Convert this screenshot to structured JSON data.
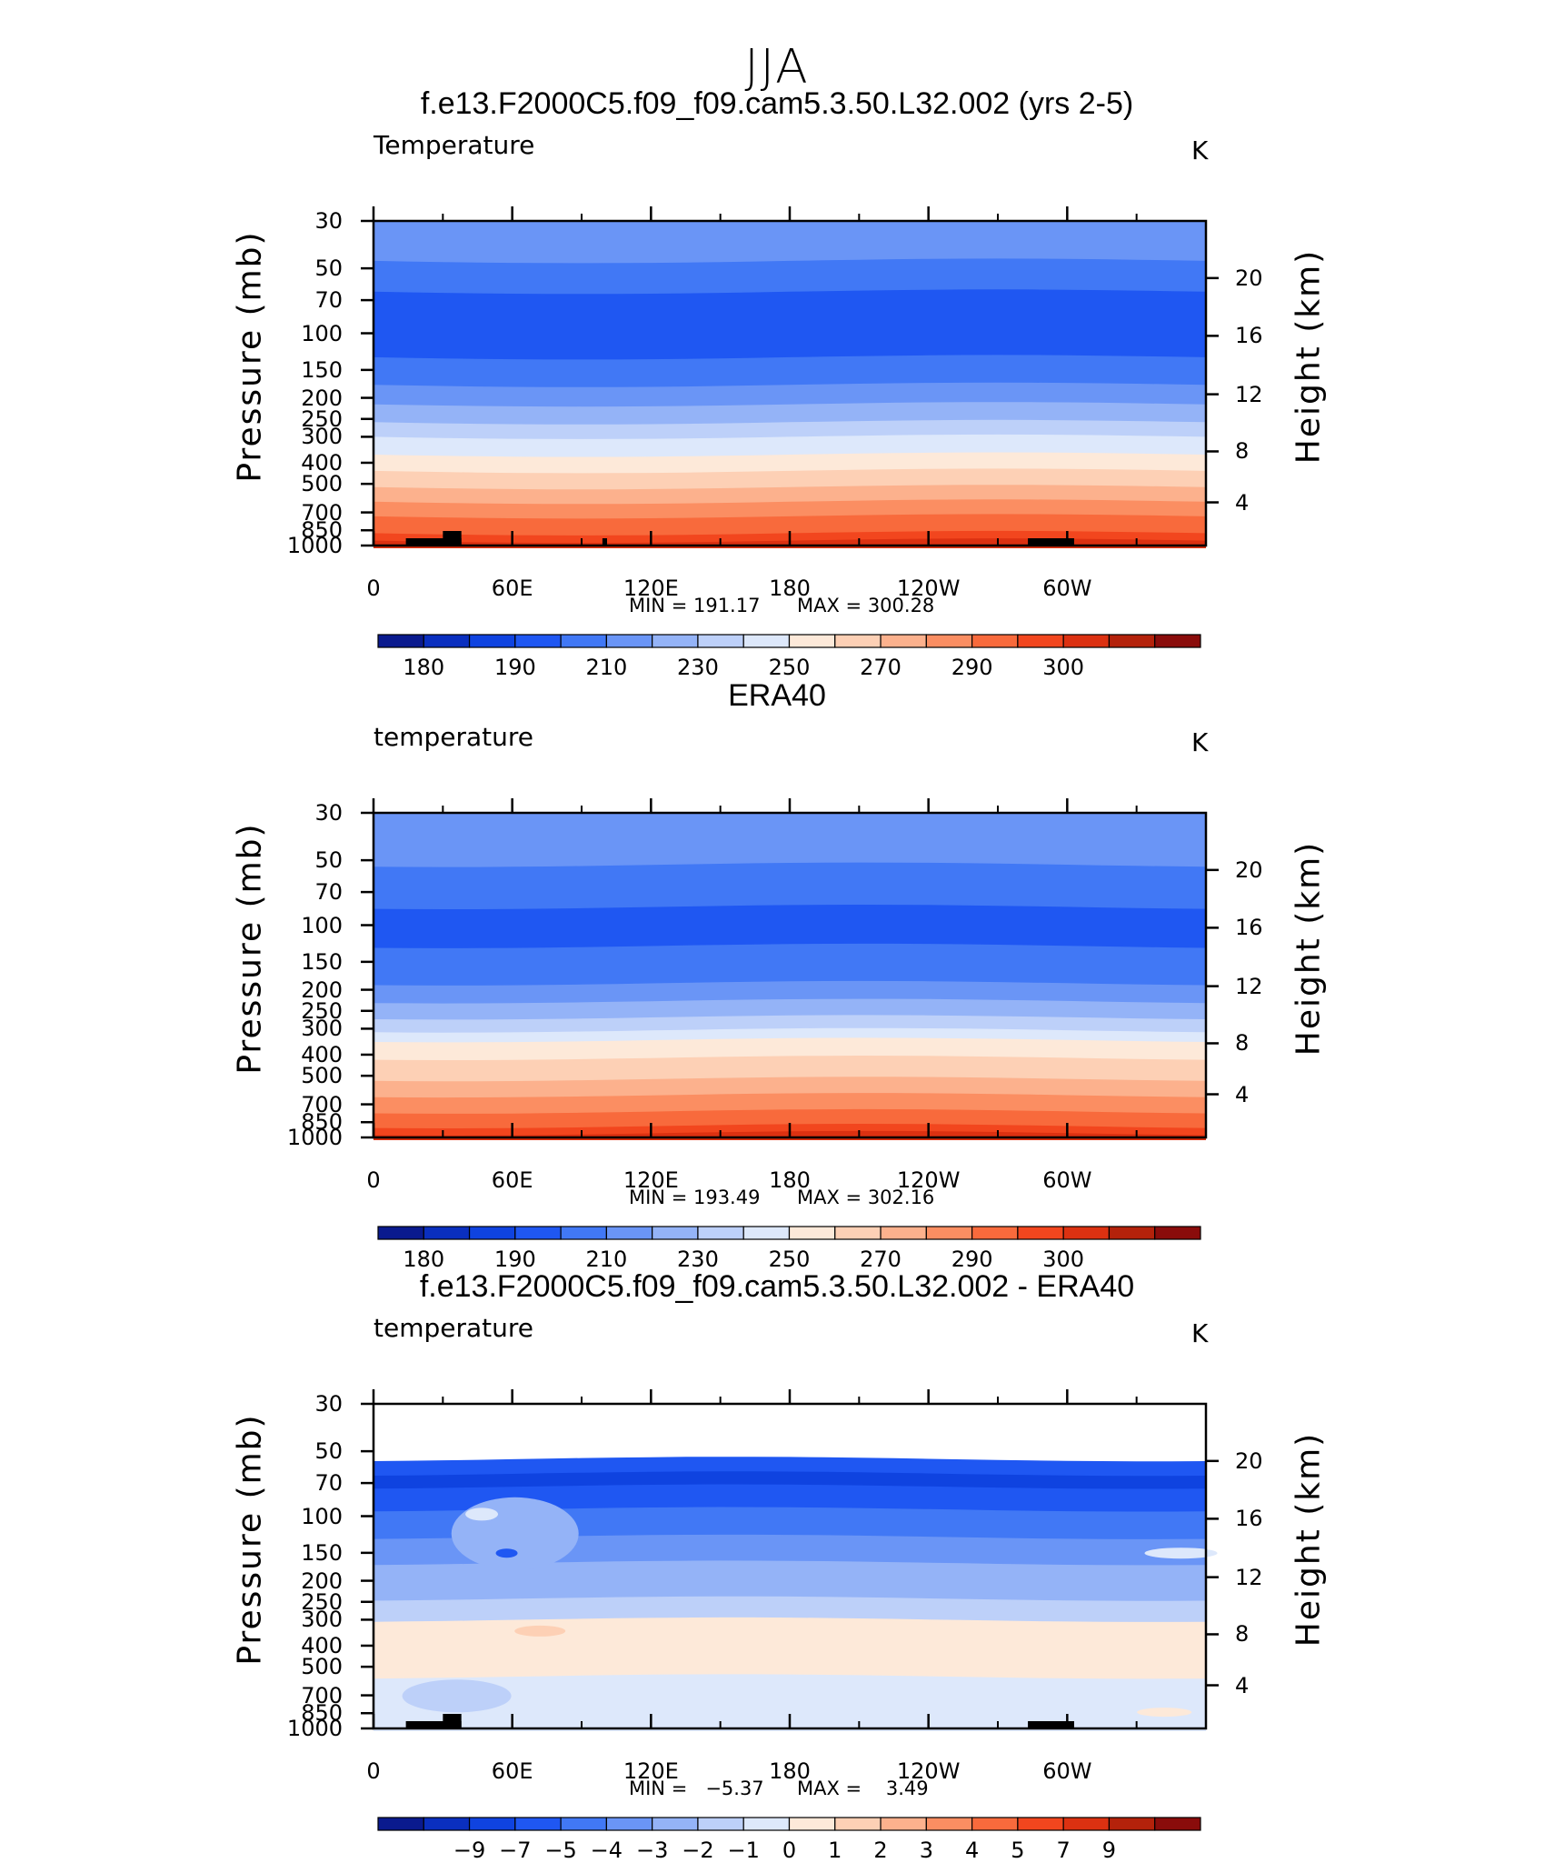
{
  "page_title": "JJA",
  "chart_data": [
    {
      "type": "contour",
      "title": "f.e13.F2000C5.f09_f09.cam5.3.50.L32.002 (yrs 2-5)",
      "variable_label": "Temperature",
      "units": "K",
      "ylabel_left": "Pressure (mb)",
      "ylabel_right": "Height (km)",
      "y_left_ticks": [
        "30",
        "50",
        "70",
        "100",
        "150",
        "200",
        "250",
        "300",
        "400",
        "500",
        "700",
        "850",
        "1000"
      ],
      "y_right_ticks": [
        "20",
        "16",
        "12",
        "8",
        "4"
      ],
      "x_ticks": [
        "0",
        "60E",
        "120E",
        "180",
        "120W",
        "60W"
      ],
      "min_label": "MIN = 191.17",
      "max_label": "MAX = 300.28",
      "min": 191.17,
      "max": 300.28,
      "colorbar_labels": [
        "180",
        "190",
        "210",
        "230",
        "250",
        "270",
        "290",
        "300"
      ],
      "colorbar_colors": [
        "#0a1a8e",
        "#0a2fbf",
        "#0f43e0",
        "#1f57f2",
        "#4178f5",
        "#6a95f6",
        "#94b3f7",
        "#bdd0f9",
        "#dde8fb",
        "#fde9d9",
        "#fdd0b5",
        "#fcb18d",
        "#fb8e62",
        "#f86a3c",
        "#f2461e",
        "#dc3111",
        "#b4220b",
        "#8a0c0b"
      ],
      "bands": [
        {
          "from": "30",
          "to": "45",
          "color": "#6a95f6"
        },
        {
          "from": "45",
          "to": "68",
          "color": "#4178f5"
        },
        {
          "from": "68",
          "to": "130",
          "color": "#1f57f2"
        },
        {
          "from": "130",
          "to": "170",
          "color": "#4178f5"
        },
        {
          "from": "170",
          "to": "215",
          "color": "#6a95f6"
        },
        {
          "from": "215",
          "to": "258",
          "color": "#94b3f7"
        },
        {
          "from": "258",
          "to": "300",
          "color": "#bdd0f9"
        },
        {
          "from": "300",
          "to": "355",
          "color": "#dde8fb"
        },
        {
          "from": "355",
          "to": "430",
          "color": "#fde9d9"
        },
        {
          "from": "430",
          "to": "520",
          "color": "#fdd0b5"
        },
        {
          "from": "520",
          "to": "620",
          "color": "#fcb18d"
        },
        {
          "from": "620",
          "to": "740",
          "color": "#fb8e62"
        },
        {
          "from": "740",
          "to": "880",
          "color": "#f86a3c"
        },
        {
          "from": "880",
          "to": "965",
          "color": "#f2461e"
        },
        {
          "from": "965",
          "to": "1000",
          "color": "#dc3111"
        }
      ],
      "topography_lons": [
        [
          14,
          38
        ],
        [
          99,
          101
        ],
        [
          283,
          303
        ]
      ]
    },
    {
      "type": "contour",
      "title": "ERA40",
      "variable_label": "temperature",
      "units": "K",
      "ylabel_left": "Pressure (mb)",
      "ylabel_right": "Height (km)",
      "y_left_ticks": [
        "30",
        "50",
        "70",
        "100",
        "150",
        "200",
        "250",
        "300",
        "400",
        "500",
        "700",
        "850",
        "1000"
      ],
      "y_right_ticks": [
        "20",
        "16",
        "12",
        "8",
        "4"
      ],
      "x_ticks": [
        "0",
        "60E",
        "120E",
        "180",
        "120W",
        "60W"
      ],
      "min_label": "MIN = 193.49",
      "max_label": "MAX = 302.16",
      "min": 193.49,
      "max": 302.16,
      "colorbar_labels": [
        "180",
        "190",
        "210",
        "230",
        "250",
        "270",
        "290",
        "300"
      ],
      "colorbar_colors": [
        "#0a1a8e",
        "#0a2fbf",
        "#0f43e0",
        "#1f57f2",
        "#4178f5",
        "#6a95f6",
        "#94b3f7",
        "#bdd0f9",
        "#dde8fb",
        "#fde9d9",
        "#fdd0b5",
        "#fcb18d",
        "#fb8e62",
        "#f86a3c",
        "#f2461e",
        "#dc3111",
        "#b4220b",
        "#8a0c0b"
      ],
      "bands": [
        {
          "from": "30",
          "to": "52",
          "color": "#6a95f6"
        },
        {
          "from": "52",
          "to": "85",
          "color": "#4178f5"
        },
        {
          "from": "85",
          "to": "125",
          "color": "#1f57f2"
        },
        {
          "from": "125",
          "to": "180",
          "color": "#4178f5"
        },
        {
          "from": "180",
          "to": "225",
          "color": "#6a95f6"
        },
        {
          "from": "225",
          "to": "262",
          "color": "#94b3f7"
        },
        {
          "from": "262",
          "to": "305",
          "color": "#bdd0f9"
        },
        {
          "from": "305",
          "to": "345",
          "color": "#dde8fb"
        },
        {
          "from": "345",
          "to": "420",
          "color": "#fde9d9"
        },
        {
          "from": "420",
          "to": "520",
          "color": "#fdd0b5"
        },
        {
          "from": "520",
          "to": "630",
          "color": "#fcb18d"
        },
        {
          "from": "630",
          "to": "760",
          "color": "#fb8e62"
        },
        {
          "from": "760",
          "to": "890",
          "color": "#f86a3c"
        },
        {
          "from": "890",
          "to": "970",
          "color": "#f2461e"
        },
        {
          "from": "970",
          "to": "1000",
          "color": "#dc3111"
        }
      ],
      "topography_lons": []
    },
    {
      "type": "contour",
      "title": "f.e13.F2000C5.f09_f09.cam5.3.50.L32.002 - ERA40",
      "variable_label": "temperature",
      "units": "K",
      "ylabel_left": "Pressure (mb)",
      "ylabel_right": "Height (km)",
      "y_left_ticks": [
        "30",
        "50",
        "70",
        "100",
        "150",
        "200",
        "250",
        "300",
        "400",
        "500",
        "700",
        "850",
        "1000"
      ],
      "y_right_ticks": [
        "20",
        "16",
        "12",
        "8",
        "4"
      ],
      "x_ticks": [
        "0",
        "60E",
        "120E",
        "180",
        "120W",
        "60W"
      ],
      "min_label": "MIN =   −5.37",
      "max_label": "MAX =    3.49",
      "min": -5.37,
      "max": 3.49,
      "colorbar_labels": [
        "−9",
        "−7",
        "−5",
        "−4",
        "−3",
        "−2",
        "−1",
        "0",
        "1",
        "2",
        "3",
        "4",
        "5",
        "7",
        "9"
      ],
      "colorbar_colors": [
        "#0a1a8e",
        "#0a2fbf",
        "#0f43e0",
        "#1f57f2",
        "#4178f5",
        "#6a95f6",
        "#94b3f7",
        "#bdd0f9",
        "#dde8fb",
        "#fde9d9",
        "#fdd0b5",
        "#fcb18d",
        "#fb8e62",
        "#f86a3c",
        "#f2461e",
        "#dc3111",
        "#b4220b",
        "#8a0c0b"
      ],
      "bands": [
        {
          "from": "30",
          "to": "48",
          "color": "#1f57f2"
        },
        {
          "from": "48",
          "to": "55",
          "color": "#4178f5"
        },
        {
          "from": "55",
          "to": "65",
          "color": "#1f57f2"
        },
        {
          "from": "65",
          "to": "75",
          "color": "#0f43e0"
        },
        {
          "from": "75",
          "to": "95",
          "color": "#1f57f2"
        },
        {
          "from": "95",
          "to": "125",
          "color": "#4178f5"
        },
        {
          "from": "125",
          "to": "165",
          "color": "#6a95f6"
        },
        {
          "from": "165",
          "to": "240",
          "color": "#94b3f7"
        },
        {
          "from": "240",
          "to": "300",
          "color": "#bdd0f9"
        },
        {
          "from": "300",
          "to": "560",
          "color": "#fde9d9"
        },
        {
          "from": "560",
          "to": "700",
          "color": "#dde8fb"
        },
        {
          "from": "700",
          "to": "860",
          "color": "#dde8fb"
        },
        {
          "from": "860",
          "to": "1000",
          "color": "#dde8fb"
        }
      ],
      "topography_lons": [
        [
          14,
          38
        ],
        [
          283,
          303
        ]
      ]
    }
  ]
}
